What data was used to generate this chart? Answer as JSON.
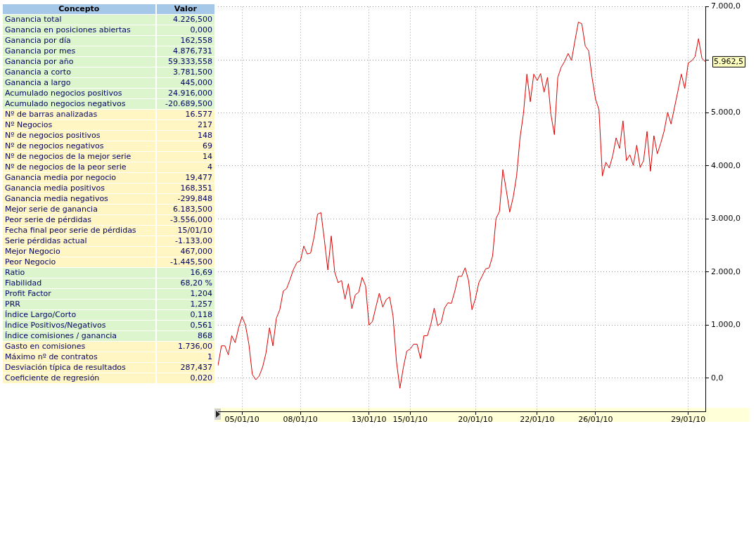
{
  "chart_data": [
    {
      "type": "other",
      "annotations": [
        "Concepto",
        "Valor"
      ],
      "categories": [
        "Ganancia total",
        "Ganancia en posiciones abiertas",
        "Ganancia por día",
        "Ganancia por mes",
        "Ganancia por año",
        "Ganancia a corto",
        "Ganancia a largo",
        "Acumulado negocios positivos",
        "Acumulado negocios negativos",
        "Nº de barras analizadas",
        "Nº Negocios",
        "Nº de negocios positivos",
        "Nº de negocios negativos",
        "Nº de negocios de la mejor serie",
        "Nº de negocios de la peor serie",
        "Ganancia media por negocio",
        "Ganancia media positivos",
        "Ganancia media negativos",
        "Mejor serie de ganancia",
        "Peor serie de pérdidas",
        "Fecha final peor serie de pérdidas",
        "Serie pérdidas actual",
        "Mejor Negocio",
        "Peor Negocio",
        "Ratio",
        "Fiabilidad",
        "Profit Factor",
        "PRR",
        "Índice Largo/Corto",
        "Índice Positivos/Negativos",
        "Índice comisiones / ganancia",
        "Gasto en comisiones",
        "Máximo nº de contratos",
        "Desviación típica de resultados",
        "Coeficiente de regresión"
      ],
      "value_labels": [
        "4.226,500",
        "0,000",
        "162,558",
        "4.876,731",
        "59.333,558",
        "3.781,500",
        "445,000",
        "24.916,000",
        "-20.689,500",
        "16.577",
        "217",
        "148",
        "69",
        "14",
        "4",
        "19,477",
        "168,351",
        "-299,848",
        "6.183,500",
        "-3.556,000",
        "15/01/10",
        "-1.133,00",
        "467,000",
        "-1.445,500",
        "16,69",
        "68,20 %",
        "1,204",
        "1,257",
        "0,118",
        "0,561",
        "868",
        "1.736,00",
        "1",
        "287,437",
        "0,020"
      ],
      "colors": [
        "#dcf5cc",
        "#dcf5cc",
        "#dcf5cc",
        "#dcf5cc",
        "#dcf5cc",
        "#dcf5cc",
        "#dcf5cc",
        "#dcf5cc",
        "#dcf5cc",
        "#fff6c4",
        "#fff6c4",
        "#fff6c4",
        "#fff6c4",
        "#fff6c4",
        "#fff6c4",
        "#fff6c4",
        "#fff6c4",
        "#fff6c4",
        "#fff6c4",
        "#fff6c4",
        "#fff6c4",
        "#fff6c4",
        "#fff6c4",
        "#fff6c4",
        "#dcf5cc",
        "#dcf5cc",
        "#dcf5cc",
        "#dcf5cc",
        "#dcf5cc",
        "#dcf5cc",
        "#dcf5cc",
        "#fff6c4",
        "#fff6c4",
        "#fff6c4",
        "#fff6c4"
      ]
    },
    {
      "type": "line",
      "color": "#dd0000",
      "grid": true,
      "ylim": [
        -625,
        7000
      ],
      "yticks": [
        {
          "value": 0,
          "label": "0,0"
        },
        {
          "value": 1000,
          "label": "1.000,0"
        },
        {
          "value": 2000,
          "label": "2.000,0"
        },
        {
          "value": 3000,
          "label": "3.000,0"
        },
        {
          "value": 4000,
          "label": "4.000,0"
        },
        {
          "value": 5000,
          "label": "5.000,0"
        },
        {
          "value": 6000,
          "label": null
        },
        {
          "value": 7000,
          "label": "7.000,0"
        }
      ],
      "annotations": [
        "5.962,5"
      ],
      "categories": [
        null,
        null,
        null,
        null,
        null,
        null,
        null,
        "05/01/10",
        null,
        null,
        null,
        null,
        null,
        null,
        null,
        null,
        null,
        null,
        null,
        null,
        null,
        null,
        null,
        null,
        "08/01/10",
        null,
        null,
        null,
        null,
        null,
        null,
        null,
        null,
        null,
        null,
        null,
        null,
        null,
        null,
        null,
        null,
        null,
        null,
        null,
        "13/01/10",
        null,
        null,
        null,
        null,
        null,
        null,
        null,
        null,
        null,
        null,
        null,
        "15/01/10",
        null,
        null,
        null,
        null,
        null,
        null,
        null,
        null,
        null,
        null,
        null,
        null,
        null,
        null,
        null,
        null,
        null,
        null,
        "20/01/10",
        null,
        null,
        null,
        null,
        null,
        null,
        null,
        null,
        null,
        null,
        null,
        null,
        null,
        null,
        null,
        null,
        null,
        "22/01/10",
        null,
        null,
        null,
        null,
        null,
        null,
        null,
        null,
        null,
        null,
        null,
        null,
        null,
        null,
        null,
        null,
        "26/01/10",
        null,
        null,
        null,
        null,
        null,
        null,
        null,
        null,
        null,
        null,
        null,
        null,
        null,
        null,
        null,
        null,
        null,
        null,
        null,
        null,
        null,
        null,
        null,
        null,
        null,
        null,
        "29/01/10",
        null,
        null,
        null,
        null,
        null
      ],
      "values": [
        240,
        610,
        610,
        440,
        800,
        670,
        950,
        1160,
        1000,
        640,
        70,
        -30,
        40,
        210,
        480,
        950,
        610,
        1130,
        1290,
        1640,
        1690,
        1860,
        2050,
        2180,
        2210,
        2490,
        2340,
        2360,
        2660,
        3090,
        3120,
        2600,
        2040,
        2680,
        2000,
        1800,
        1840,
        1490,
        1780,
        1310,
        1570,
        1620,
        1900,
        1740,
        1000,
        1070,
        1340,
        1600,
        1340,
        1480,
        1530,
        1170,
        310,
        -190,
        200,
        510,
        550,
        640,
        640,
        370,
        800,
        800,
        1010,
        1320,
        990,
        1040,
        1320,
        1420,
        1410,
        1640,
        1920,
        1920,
        2080,
        1840,
        1290,
        1500,
        1800,
        1930,
        2060,
        2080,
        2300,
        3010,
        3140,
        3930,
        3540,
        3130,
        3410,
        3810,
        4530,
        4990,
        5730,
        5210,
        5730,
        5610,
        5740,
        5390,
        5670,
        4970,
        4590,
        5670,
        5860,
        5970,
        6120,
        5990,
        6360,
        6710,
        6680,
        6260,
        6170,
        5660,
        5260,
        5060,
        3810,
        4070,
        3960,
        4190,
        4530,
        4330,
        4850,
        4100,
        4210,
        4010,
        4390,
        3970,
        4100,
        4650,
        3900,
        4570,
        4230,
        4430,
        4660,
        5010,
        4790,
        5100,
        5410,
        5730,
        5460,
        5940,
        5980,
        6060,
        6400,
        6030,
        5962.5
      ]
    }
  ]
}
